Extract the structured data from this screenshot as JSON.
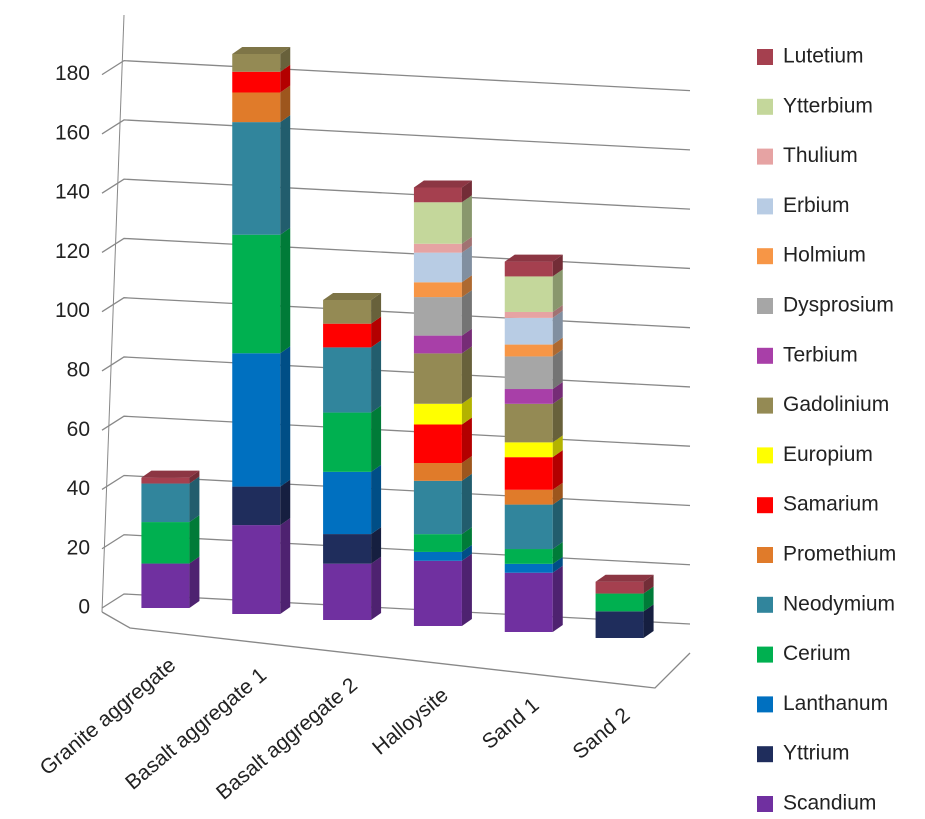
{
  "chart_data": {
    "type": "bar3d",
    "categories": [
      "Granite aggregate",
      "Basalt aggregate 1",
      "Basalt aggregate 2",
      "Halloysite",
      "Sand 1",
      "Sand 2"
    ],
    "series": [
      {
        "name": "Scandium",
        "color": "#7030a0",
        "values": [
          15,
          30,
          19,
          22,
          20,
          0
        ]
      },
      {
        "name": "Yttrium",
        "color": "#1f2d5c",
        "values": [
          0,
          13,
          10,
          0,
          0,
          9
        ]
      },
      {
        "name": "Lanthanum",
        "color": "#0070c0",
        "values": [
          0,
          45,
          21,
          3,
          3,
          0
        ]
      },
      {
        "name": "Cerium",
        "color": "#00b050",
        "values": [
          14,
          40,
          20,
          6,
          5,
          6
        ]
      },
      {
        "name": "Neodymium",
        "color": "#31859c",
        "values": [
          13,
          38,
          22,
          18,
          15,
          0
        ]
      },
      {
        "name": "Promethium",
        "color": "#e07b2a",
        "values": [
          0,
          10,
          0,
          6,
          5,
          0
        ]
      },
      {
        "name": "Samarium",
        "color": "#ff0000",
        "values": [
          0,
          7,
          8,
          13,
          11,
          0
        ]
      },
      {
        "name": "Europium",
        "color": "#ffff00",
        "values": [
          0,
          0,
          0,
          7,
          5,
          0
        ]
      },
      {
        "name": "Gadolinium",
        "color": "#948a54",
        "values": [
          0,
          6,
          8,
          17,
          13,
          0
        ]
      },
      {
        "name": "Terbium",
        "color": "#a83fa8",
        "values": [
          0,
          0,
          0,
          6,
          5,
          0
        ]
      },
      {
        "name": "Dysprosium",
        "color": "#a6a6a6",
        "values": [
          0,
          0,
          0,
          13,
          11,
          0
        ]
      },
      {
        "name": "Holmium",
        "color": "#f79646",
        "values": [
          0,
          0,
          0,
          5,
          4,
          0
        ]
      },
      {
        "name": "Erbium",
        "color": "#b8cce4",
        "values": [
          0,
          0,
          0,
          10,
          9,
          0
        ]
      },
      {
        "name": "Thulium",
        "color": "#e6a3a3",
        "values": [
          0,
          0,
          0,
          3,
          2,
          0
        ]
      },
      {
        "name": "Ytterbium",
        "color": "#c4d79b",
        "values": [
          0,
          0,
          0,
          14,
          12,
          0
        ]
      },
      {
        "name": "Lutetium",
        "color": "#a5404f",
        "values": [
          2,
          0,
          0,
          5,
          5,
          4
        ]
      }
    ],
    "ylim": [
      0,
      190
    ],
    "yticks": [
      0,
      20,
      40,
      60,
      80,
      100,
      120,
      140,
      160,
      180
    ],
    "grid": true
  }
}
